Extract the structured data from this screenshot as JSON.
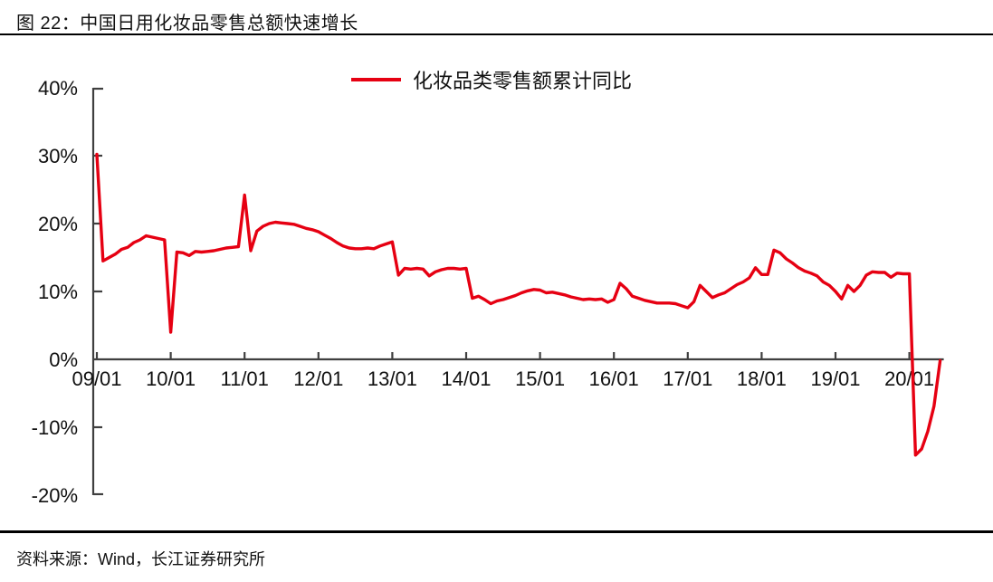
{
  "header": {
    "title": "图 22：中国日用化妆品零售总额快速增长"
  },
  "footer": {
    "source": "资料来源：Wind，长江证券研究所"
  },
  "colors": {
    "line": "#e60012",
    "axis": "#3f3f3f",
    "text": "#111111",
    "background": "#ffffff"
  },
  "chart_data": {
    "type": "line",
    "title": "图 22：中国日用化妆品零售总额快速增长",
    "legend_position": "top-center",
    "grid": false,
    "ylim": [
      -20,
      40
    ],
    "y_unit": "% (cumulative YoY)",
    "y_tick_labels": [
      "40%",
      "30%",
      "20%",
      "10%",
      "0%",
      "-10%",
      "-20%"
    ],
    "x_tick_labels": [
      "09/01",
      "10/01",
      "11/01",
      "12/01",
      "13/01",
      "14/01",
      "15/01",
      "16/01",
      "17/01",
      "18/01",
      "19/01",
      "20/01"
    ],
    "series": [
      {
        "name": "化妆品类零售额累计同比",
        "color": "#e60012",
        "x": [
          "09/01",
          "09/02",
          "09/03",
          "09/04",
          "09/05",
          "09/06",
          "09/07",
          "09/08",
          "09/09",
          "09/10",
          "09/11",
          "09/12",
          "10/01",
          "10/02",
          "10/03",
          "10/04",
          "10/05",
          "10/06",
          "10/07",
          "10/08",
          "10/09",
          "10/10",
          "10/11",
          "10/12",
          "11/01",
          "11/02",
          "11/03",
          "11/04",
          "11/05",
          "11/06",
          "11/07",
          "11/08",
          "11/09",
          "11/10",
          "11/11",
          "11/12",
          "12/01",
          "12/02",
          "12/03",
          "12/04",
          "12/05",
          "12/06",
          "12/07",
          "12/08",
          "12/09",
          "12/10",
          "12/11",
          "12/12",
          "13/01",
          "13/02",
          "13/03",
          "13/04",
          "13/05",
          "13/06",
          "13/07",
          "13/08",
          "13/09",
          "13/10",
          "13/11",
          "13/12",
          "14/01",
          "14/02",
          "14/03",
          "14/04",
          "14/05",
          "14/06",
          "14/07",
          "14/08",
          "14/09",
          "14/10",
          "14/11",
          "14/12",
          "15/01",
          "15/02",
          "15/03",
          "15/04",
          "15/05",
          "15/06",
          "15/07",
          "15/08",
          "15/09",
          "15/10",
          "15/11",
          "15/12",
          "16/01",
          "16/02",
          "16/03",
          "16/04",
          "16/05",
          "16/06",
          "16/07",
          "16/08",
          "16/09",
          "16/10",
          "16/11",
          "16/12",
          "17/01",
          "17/02",
          "17/03",
          "17/04",
          "17/05",
          "17/06",
          "17/07",
          "17/08",
          "17/09",
          "17/10",
          "17/11",
          "17/12",
          "18/01",
          "18/02",
          "18/03",
          "18/04",
          "18/05",
          "18/06",
          "18/07",
          "18/08",
          "18/09",
          "18/10",
          "18/11",
          "18/12",
          "19/01",
          "19/02",
          "19/03",
          "19/04",
          "19/05",
          "19/06",
          "19/07",
          "19/08",
          "19/09",
          "19/10",
          "19/11",
          "19/12",
          "20/01",
          "20/02",
          "20/03",
          "20/04",
          "20/05",
          "20/06"
        ],
        "values": [
          30.2,
          14.5,
          15.0,
          15.5,
          16.2,
          16.5,
          17.2,
          17.6,
          18.2,
          18.0,
          17.8,
          17.6,
          4.0,
          15.8,
          15.7,
          15.3,
          15.9,
          15.8,
          15.9,
          16.0,
          16.2,
          16.4,
          16.5,
          16.6,
          24.2,
          16.0,
          18.9,
          19.6,
          20.0,
          20.2,
          20.1,
          20.0,
          19.9,
          19.6,
          19.3,
          19.1,
          18.8,
          18.3,
          17.8,
          17.2,
          16.7,
          16.4,
          16.3,
          16.3,
          16.4,
          16.3,
          16.7,
          17.0,
          17.3,
          12.4,
          13.4,
          13.3,
          13.4,
          13.3,
          12.3,
          12.9,
          13.2,
          13.4,
          13.4,
          13.3,
          13.4,
          9.0,
          9.3,
          8.8,
          8.2,
          8.6,
          8.8,
          9.1,
          9.4,
          9.8,
          10.1,
          10.3,
          10.2,
          9.8,
          9.9,
          9.7,
          9.5,
          9.2,
          9.0,
          8.8,
          8.9,
          8.8,
          8.9,
          8.4,
          8.8,
          11.2,
          10.4,
          9.3,
          9.0,
          8.7,
          8.5,
          8.3,
          8.3,
          8.3,
          8.2,
          7.9,
          7.6,
          8.5,
          10.9,
          10.0,
          9.1,
          9.5,
          9.8,
          10.4,
          11.0,
          11.4,
          12.0,
          13.5,
          12.5,
          12.5,
          16.1,
          15.7,
          14.8,
          14.2,
          13.5,
          13.0,
          12.7,
          12.3,
          11.4,
          10.9,
          10.0,
          8.9,
          10.9,
          10.0,
          10.9,
          12.4,
          12.9,
          12.8,
          12.8,
          12.1,
          12.7,
          12.6,
          12.6,
          -14.1,
          -13.2,
          -10.6,
          -6.9,
          -0.2
        ]
      }
    ]
  }
}
